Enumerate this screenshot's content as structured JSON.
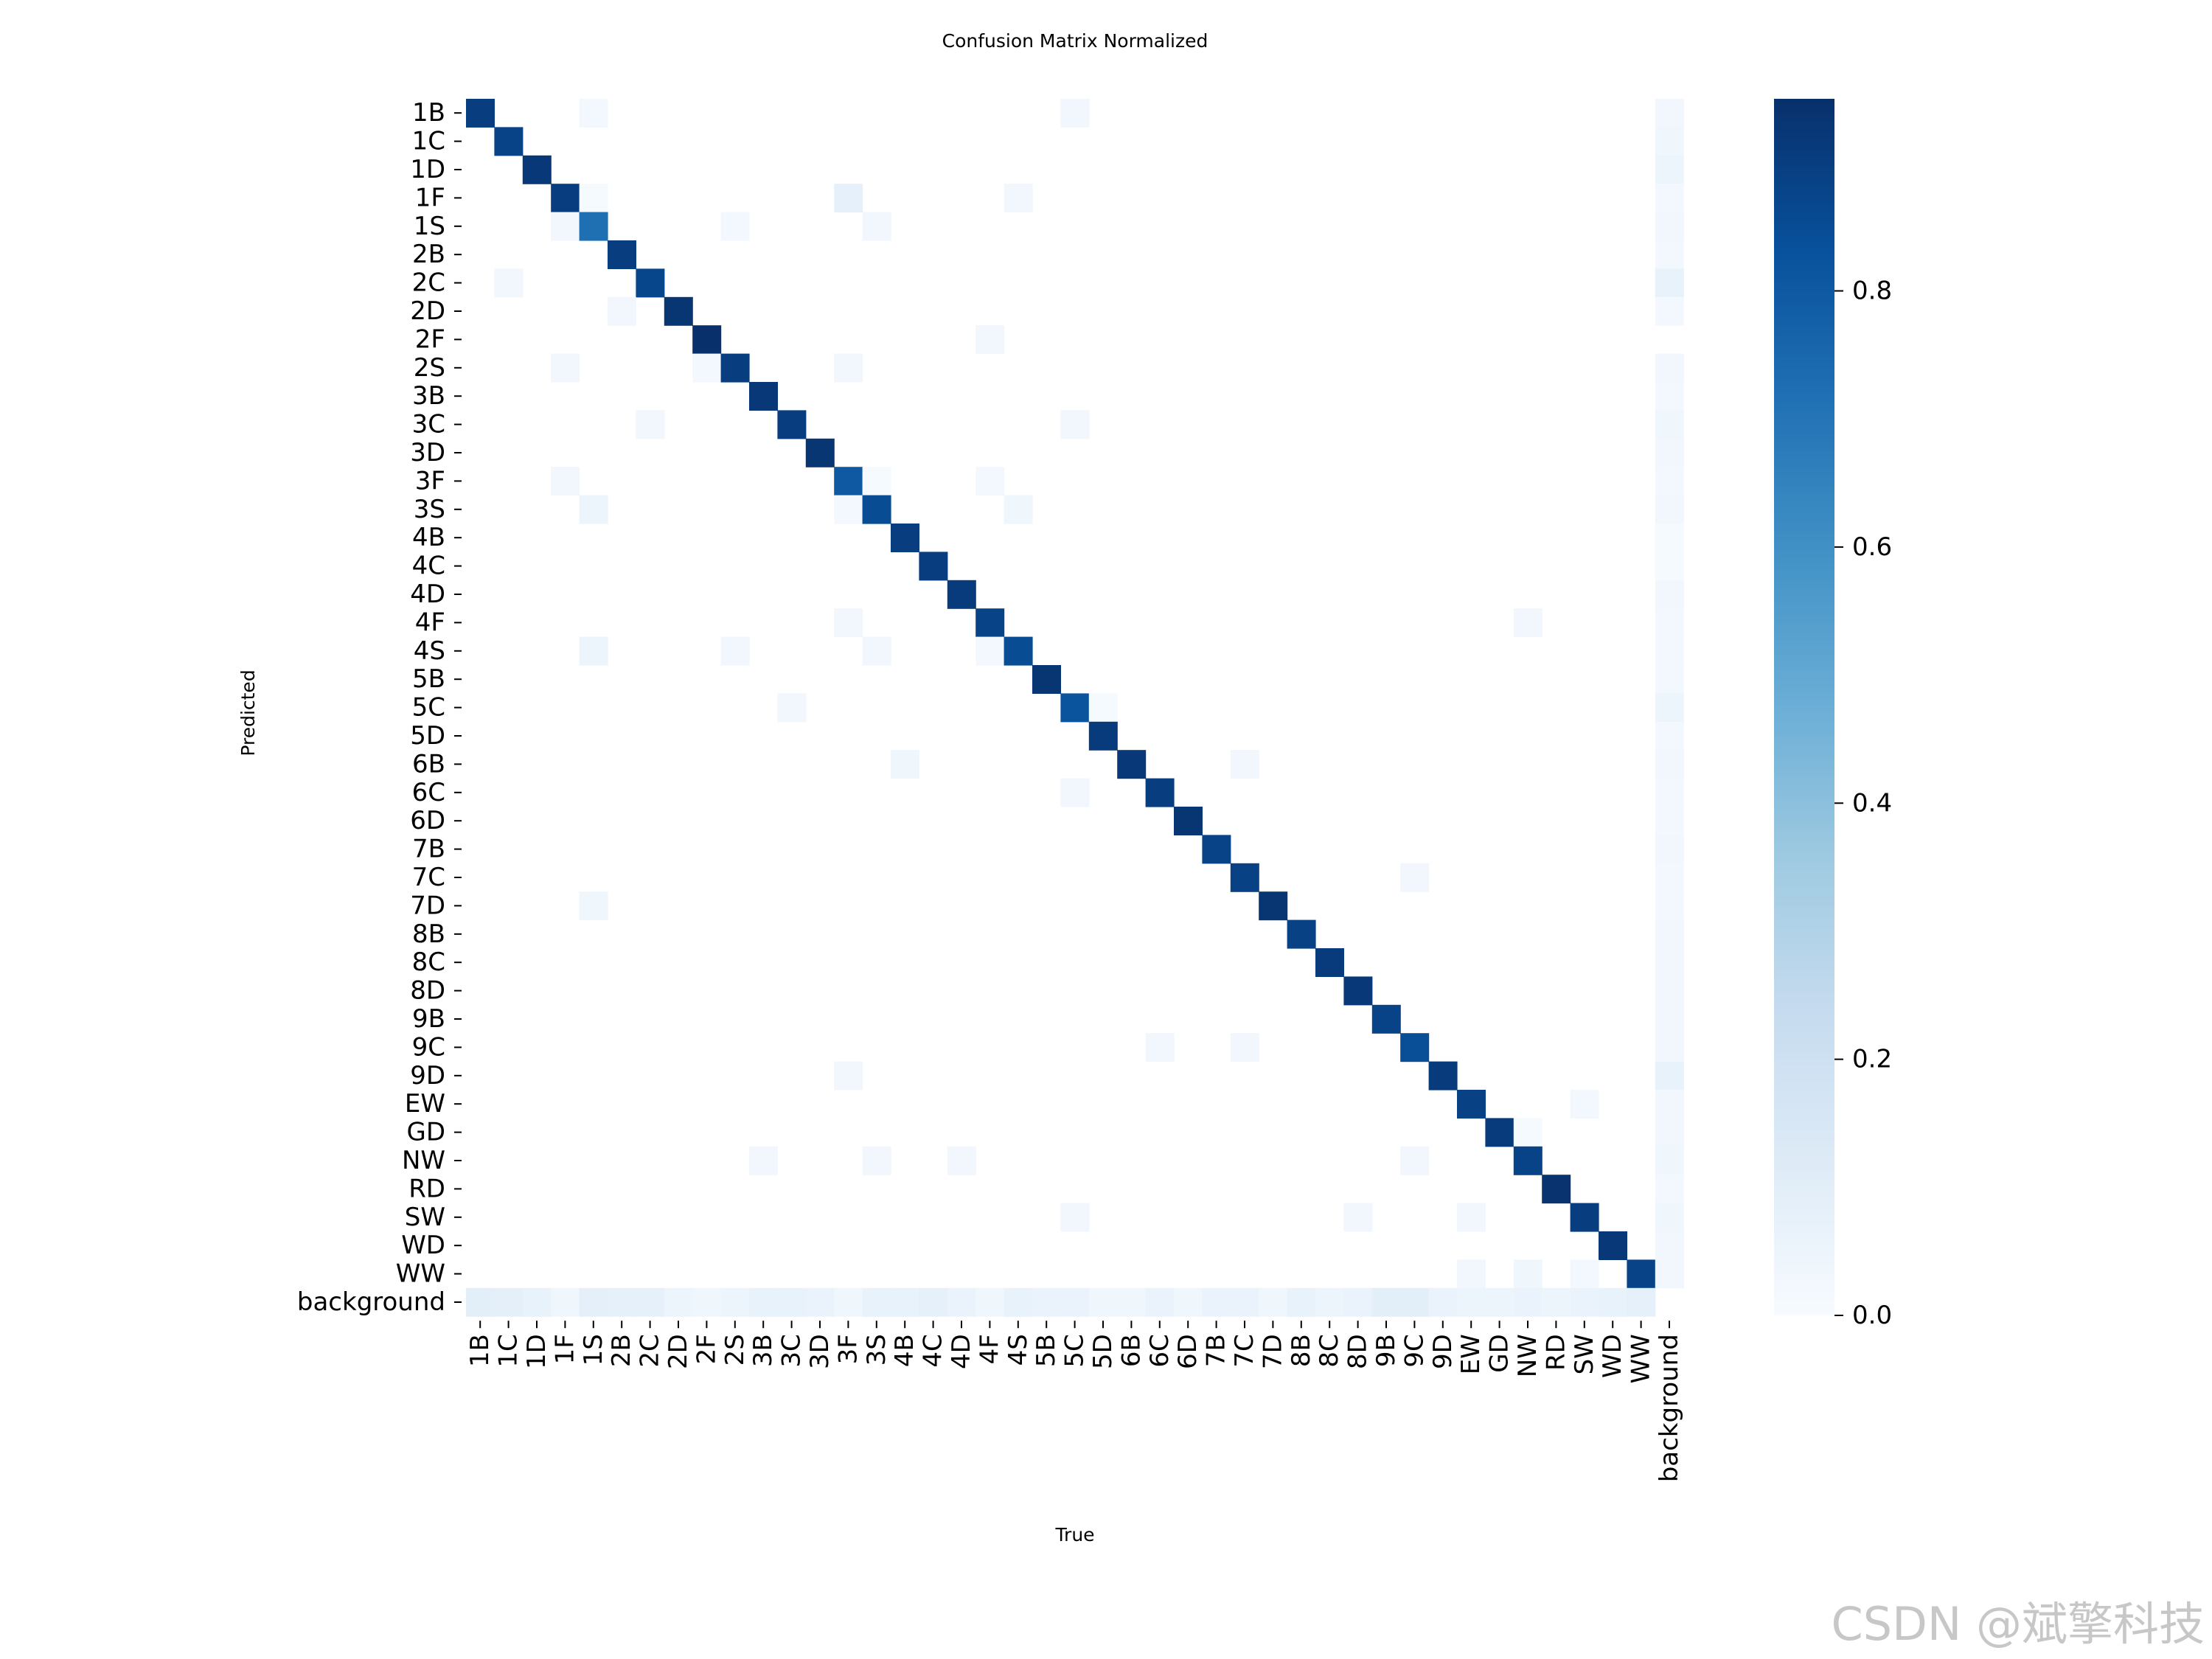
{
  "watermark": "CSDN @斌擎科技",
  "chart_data": {
    "type": "heatmap",
    "title": "Confusion Matrix Normalized",
    "xlabel": "True",
    "ylabel": "Predicted",
    "colormap": "Blues",
    "colormap_stops": [
      "#f7fbff",
      "#deebf7",
      "#c6dbef",
      "#9ecae1",
      "#6baed6",
      "#4292c6",
      "#2171b5",
      "#08519c",
      "#08306b"
    ],
    "vmin": 0.0,
    "vmax": 0.95,
    "colorbar_ticks": [
      "0.0",
      "0.2",
      "0.4",
      "0.6",
      "0.8"
    ],
    "labels": [
      "1B",
      "1C",
      "1D",
      "1F",
      "1S",
      "2B",
      "2C",
      "2D",
      "2F",
      "2S",
      "3B",
      "3C",
      "3D",
      "3F",
      "3S",
      "4B",
      "4C",
      "4D",
      "4F",
      "4S",
      "5B",
      "5C",
      "5D",
      "6B",
      "6C",
      "6D",
      "7B",
      "7C",
      "7D",
      "8B",
      "8C",
      "8D",
      "9B",
      "9C",
      "9D",
      "EW",
      "GD",
      "NW",
      "RD",
      "SW",
      "WD",
      "WW",
      "background"
    ],
    "diagonal": [
      0.9,
      0.88,
      0.92,
      0.9,
      0.72,
      0.9,
      0.87,
      0.93,
      0.95,
      0.9,
      0.92,
      0.9,
      0.93,
      0.8,
      0.85,
      0.9,
      0.9,
      0.91,
      0.88,
      0.85,
      0.93,
      0.82,
      0.91,
      0.92,
      0.9,
      0.93,
      0.88,
      0.89,
      0.93,
      0.89,
      0.91,
      0.92,
      0.88,
      0.84,
      0.91,
      0.89,
      0.91,
      0.88,
      0.94,
      0.9,
      0.92,
      0.88
    ],
    "off_diagonal": [
      [
        0,
        4,
        0.02
      ],
      [
        0,
        21,
        0.03
      ],
      [
        0,
        42,
        0.03
      ],
      [
        1,
        42,
        0.04
      ],
      [
        2,
        42,
        0.05
      ],
      [
        3,
        4,
        0.01
      ],
      [
        3,
        13,
        0.08
      ],
      [
        3,
        19,
        0.03
      ],
      [
        3,
        42,
        0.02
      ],
      [
        4,
        3,
        0.03
      ],
      [
        4,
        9,
        0.02
      ],
      [
        4,
        14,
        0.03
      ],
      [
        4,
        42,
        0.03
      ],
      [
        5,
        42,
        0.02
      ],
      [
        6,
        1,
        0.03
      ],
      [
        6,
        42,
        0.07
      ],
      [
        7,
        5,
        0.03
      ],
      [
        7,
        42,
        0.02
      ],
      [
        8,
        18,
        0.03
      ],
      [
        9,
        3,
        0.03
      ],
      [
        9,
        8,
        0.02
      ],
      [
        9,
        13,
        0.03
      ],
      [
        9,
        42,
        0.03
      ],
      [
        10,
        42,
        0.02
      ],
      [
        11,
        6,
        0.03
      ],
      [
        11,
        21,
        0.03
      ],
      [
        11,
        42,
        0.04
      ],
      [
        12,
        42,
        0.03
      ],
      [
        13,
        3,
        0.03
      ],
      [
        13,
        14,
        0.01
      ],
      [
        13,
        18,
        0.02
      ],
      [
        13,
        42,
        0.02
      ],
      [
        14,
        4,
        0.05
      ],
      [
        14,
        13,
        0.02
      ],
      [
        14,
        19,
        0.04
      ],
      [
        14,
        42,
        0.03
      ],
      [
        15,
        42,
        0.01
      ],
      [
        16,
        42,
        0.01
      ],
      [
        17,
        42,
        0.03
      ],
      [
        18,
        13,
        0.03
      ],
      [
        18,
        37,
        0.03
      ],
      [
        18,
        42,
        0.02
      ],
      [
        19,
        4,
        0.05
      ],
      [
        19,
        9,
        0.03
      ],
      [
        19,
        14,
        0.03
      ],
      [
        19,
        18,
        0.02
      ],
      [
        19,
        42,
        0.02
      ],
      [
        20,
        42,
        0.02
      ],
      [
        21,
        11,
        0.03
      ],
      [
        21,
        22,
        0.01
      ],
      [
        21,
        42,
        0.05
      ],
      [
        22,
        42,
        0.02
      ],
      [
        23,
        15,
        0.04
      ],
      [
        23,
        27,
        0.03
      ],
      [
        23,
        42,
        0.03
      ],
      [
        24,
        21,
        0.03
      ],
      [
        24,
        42,
        0.02
      ],
      [
        25,
        42,
        0.02
      ],
      [
        26,
        42,
        0.03
      ],
      [
        27,
        33,
        0.03
      ],
      [
        27,
        42,
        0.02
      ],
      [
        28,
        4,
        0.04
      ],
      [
        28,
        42,
        0.02
      ],
      [
        29,
        42,
        0.03
      ],
      [
        30,
        42,
        0.03
      ],
      [
        31,
        42,
        0.03
      ],
      [
        32,
        42,
        0.03
      ],
      [
        33,
        24,
        0.03
      ],
      [
        33,
        27,
        0.03
      ],
      [
        33,
        42,
        0.03
      ],
      [
        34,
        13,
        0.03
      ],
      [
        34,
        42,
        0.07
      ],
      [
        35,
        39,
        0.02
      ],
      [
        35,
        42,
        0.03
      ],
      [
        36,
        37,
        0.01
      ],
      [
        36,
        42,
        0.03
      ],
      [
        37,
        10,
        0.03
      ],
      [
        37,
        14,
        0.03
      ],
      [
        37,
        17,
        0.03
      ],
      [
        37,
        33,
        0.03
      ],
      [
        37,
        42,
        0.04
      ],
      [
        38,
        42,
        0.02
      ],
      [
        39,
        21,
        0.03
      ],
      [
        39,
        31,
        0.03
      ],
      [
        39,
        35,
        0.03
      ],
      [
        39,
        42,
        0.04
      ],
      [
        40,
        42,
        0.03
      ],
      [
        41,
        35,
        0.03
      ],
      [
        41,
        37,
        0.04
      ],
      [
        41,
        39,
        0.02
      ],
      [
        41,
        42,
        0.03
      ],
      [
        42,
        0,
        0.1
      ],
      [
        42,
        1,
        0.09
      ],
      [
        42,
        2,
        0.07
      ],
      [
        42,
        3,
        0.04
      ],
      [
        42,
        4,
        0.09
      ],
      [
        42,
        5,
        0.08
      ],
      [
        42,
        6,
        0.08
      ],
      [
        42,
        7,
        0.05
      ],
      [
        42,
        8,
        0.04
      ],
      [
        42,
        9,
        0.05
      ],
      [
        42,
        10,
        0.07
      ],
      [
        42,
        11,
        0.07
      ],
      [
        42,
        12,
        0.06
      ],
      [
        42,
        13,
        0.04
      ],
      [
        42,
        14,
        0.07
      ],
      [
        42,
        15,
        0.07
      ],
      [
        42,
        16,
        0.08
      ],
      [
        42,
        17,
        0.06
      ],
      [
        42,
        18,
        0.04
      ],
      [
        42,
        19,
        0.07
      ],
      [
        42,
        20,
        0.06
      ],
      [
        42,
        21,
        0.06
      ],
      [
        42,
        22,
        0.04
      ],
      [
        42,
        23,
        0.04
      ],
      [
        42,
        24,
        0.06
      ],
      [
        42,
        25,
        0.04
      ],
      [
        42,
        26,
        0.06
      ],
      [
        42,
        27,
        0.06
      ],
      [
        42,
        28,
        0.04
      ],
      [
        42,
        29,
        0.07
      ],
      [
        42,
        30,
        0.05
      ],
      [
        42,
        31,
        0.06
      ],
      [
        42,
        32,
        0.1
      ],
      [
        42,
        33,
        0.1
      ],
      [
        42,
        34,
        0.06
      ],
      [
        42,
        35,
        0.05
      ],
      [
        42,
        36,
        0.05
      ],
      [
        42,
        37,
        0.06
      ],
      [
        42,
        38,
        0.05
      ],
      [
        42,
        39,
        0.06
      ],
      [
        42,
        40,
        0.07
      ],
      [
        42,
        41,
        0.08
      ]
    ]
  }
}
